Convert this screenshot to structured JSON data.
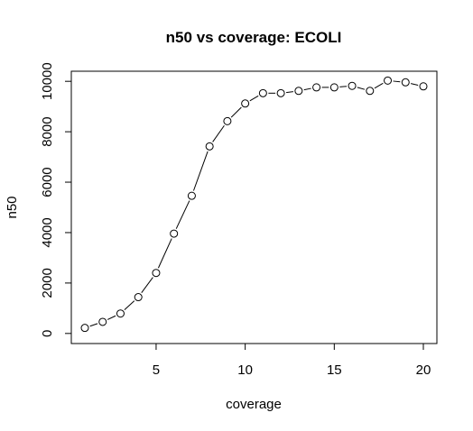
{
  "chart_data": {
    "type": "line",
    "title": "n50 vs coverage: ECOLI",
    "xlabel": "coverage",
    "ylabel": "n50",
    "xlim": [
      0.24,
      20.76
    ],
    "ylim": [
      -400,
      10400
    ],
    "x_ticks": [
      5,
      10,
      15,
      20
    ],
    "y_ticks": [
      0,
      2000,
      4000,
      6000,
      8000,
      10000
    ],
    "grid": false,
    "series": [
      {
        "x": [
          1,
          2,
          3,
          4,
          5,
          6,
          7,
          8,
          9,
          10,
          11,
          12,
          13,
          14,
          15,
          16,
          17,
          18,
          19,
          20
        ],
        "values": [
          220,
          460,
          790,
          1440,
          2400,
          3960,
          5460,
          7420,
          8420,
          9120,
          9530,
          9530,
          9620,
          9760,
          9760,
          9820,
          9620,
          10030,
          9960,
          9800
        ]
      }
    ]
  }
}
